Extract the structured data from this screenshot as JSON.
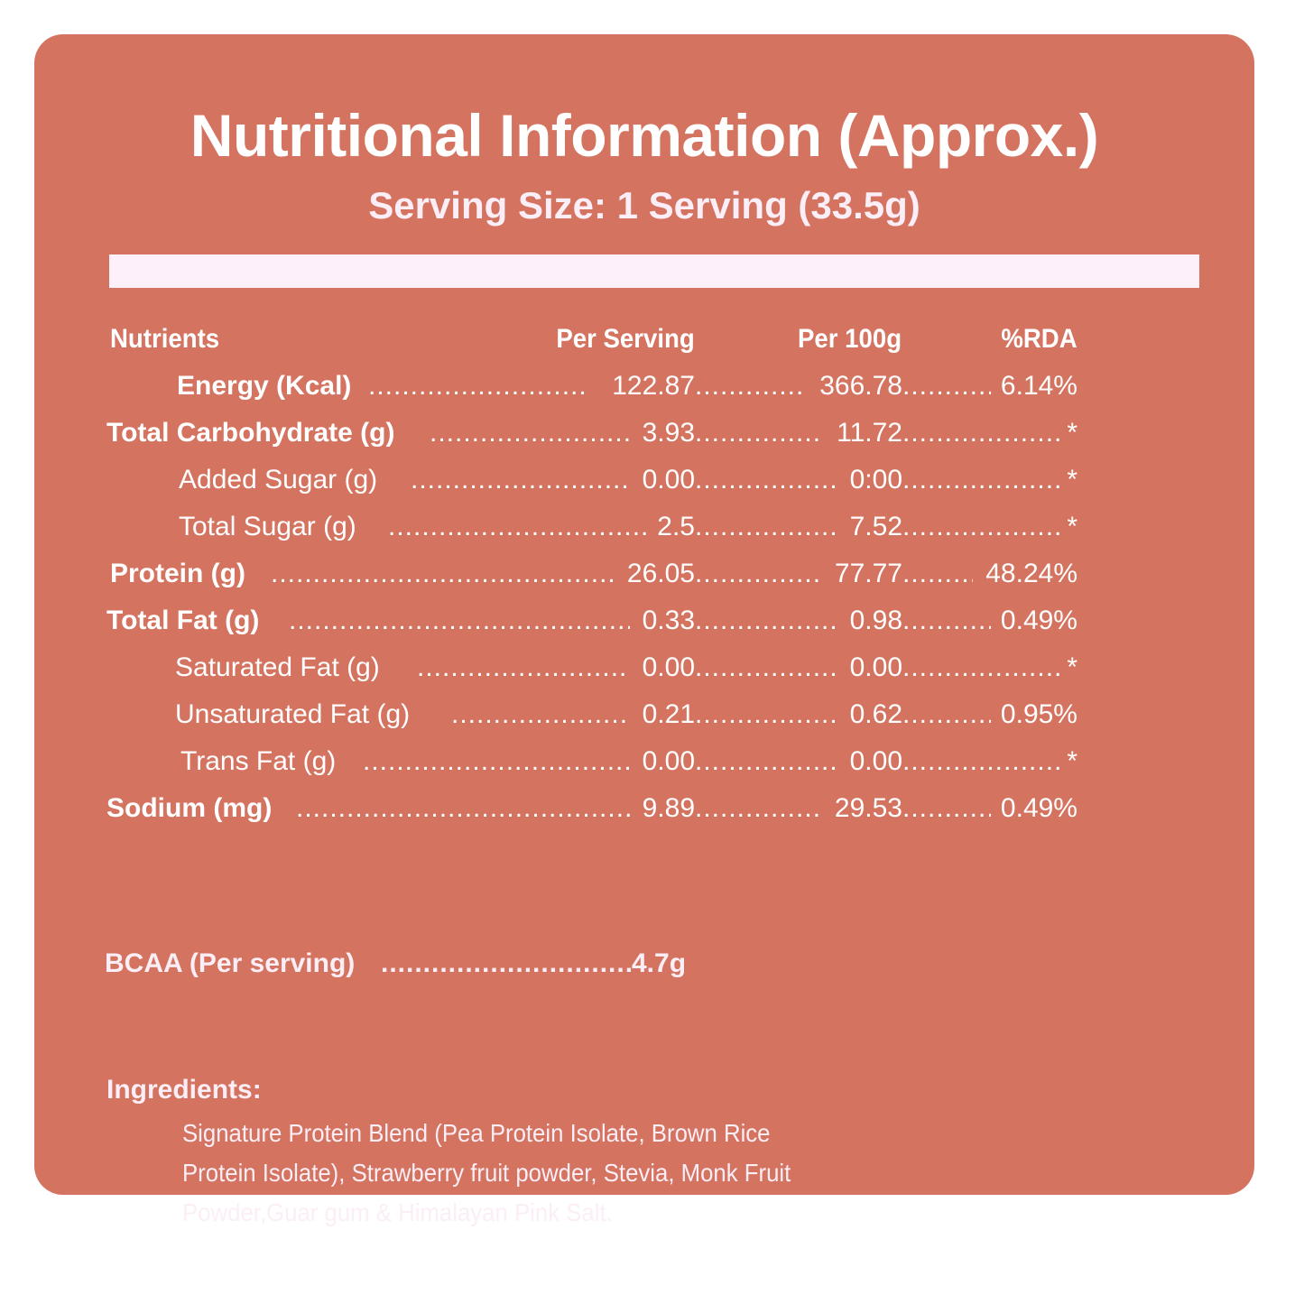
{
  "title": "Nutritional Information (Approx.)",
  "subtitle": "Serving Size: 1 Serving (33.5g)",
  "headers": {
    "nutrients": "Nutrients",
    "per_serving": "Per Serving",
    "per_100g": "Per 100g",
    "rda": "%RDA"
  },
  "rows": [
    {
      "label": "Energy (Kcal)",
      "per_serving": "122.87",
      "per_100g": "366.78",
      "rda": "6.14%"
    },
    {
      "label": "Total Carbohydrate (g)",
      "per_serving": "3.93",
      "per_100g": "11.72",
      "rda": "*"
    },
    {
      "label": "Added Sugar (g)",
      "per_serving": "0.00",
      "per_100g": "0:00",
      "rda": "*"
    },
    {
      "label": "Total Sugar (g)",
      "per_serving": "2.5",
      "per_100g": "7.52",
      "rda": "*"
    },
    {
      "label": "Protein (g)",
      "per_serving": "26.05",
      "per_100g": "77.77",
      "rda": "48.24%"
    },
    {
      "label": "Total Fat (g)",
      "per_serving": "0.33",
      "per_100g": "0.98",
      "rda": "0.49%"
    },
    {
      "label": "Saturated Fat (g)",
      "per_serving": "0.00",
      "per_100g": "0.00",
      "rda": "*"
    },
    {
      "label": "Unsaturated Fat (g)",
      "per_serving": "0.21",
      "per_100g": "0.62",
      "rda": "0.95%"
    },
    {
      "label": "Trans Fat (g)",
      "per_serving": "0.00",
      "per_100g": "0.00",
      "rda": "*"
    },
    {
      "label": "Sodium (mg)",
      "per_serving": "9.89",
      "per_100g": "29.53",
      "rda": "0.49%"
    }
  ],
  "bcaa": {
    "label": "BCAA (Per serving)",
    "value": "4.7g"
  },
  "ingredients": {
    "title": "Ingredients:",
    "line1": "Signature Protein Blend (Pea Protein Isolate, Brown Rice",
    "line2": "Protein Isolate), Strawberry fruit powder, Stevia, Monk Fruit",
    "line3": "Powder,Guar gum & Himalayan Pink Salt."
  },
  "colors": {
    "card": "#d4735f",
    "divider": "#fdf0fa",
    "text": "#ffffff",
    "soft_text": "#fbeef6"
  }
}
